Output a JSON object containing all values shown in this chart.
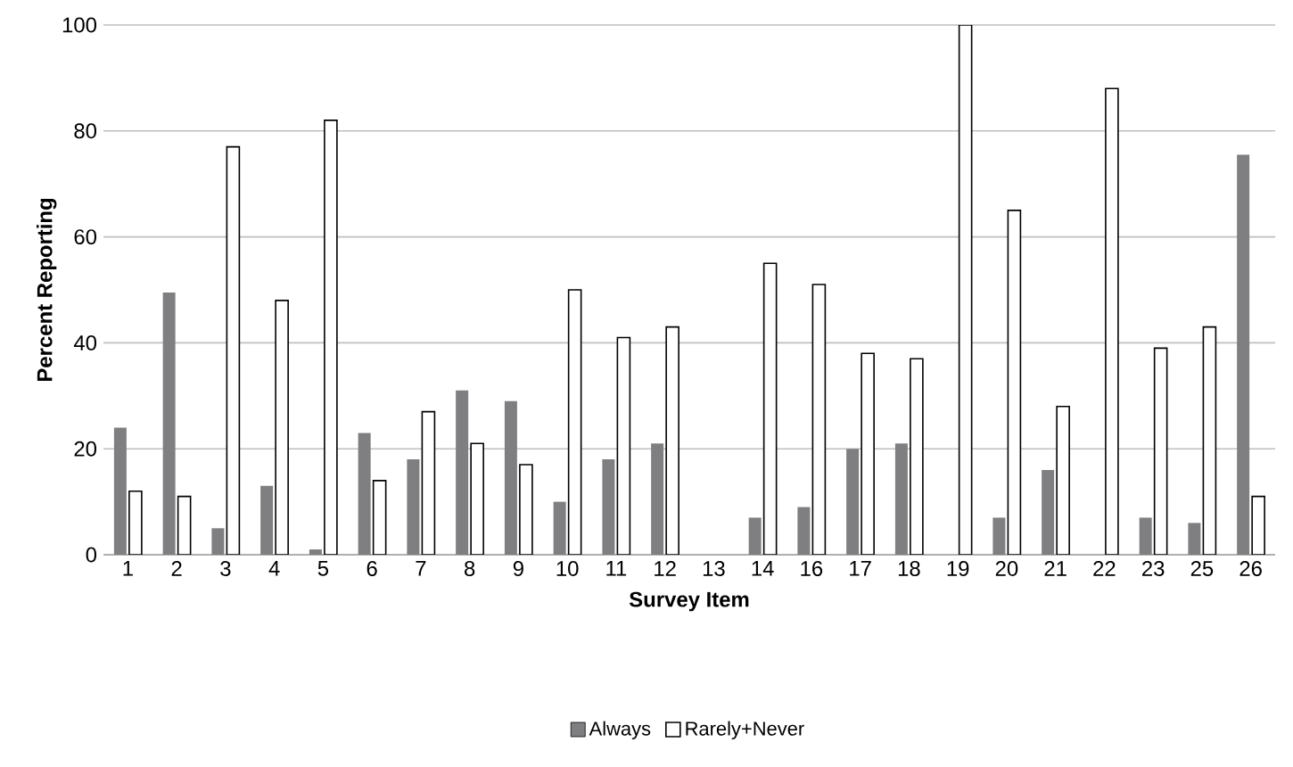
{
  "chart_data": {
    "type": "bar",
    "xlabel": "Survey Item",
    "ylabel": "Percent Reporting",
    "categories": [
      "1",
      "2",
      "3",
      "4",
      "5",
      "6",
      "7",
      "8",
      "9",
      "10",
      "11",
      "12",
      "13",
      "14",
      "16",
      "17",
      "18",
      "19",
      "20",
      "21",
      "22",
      "23",
      "25",
      "26"
    ],
    "series": [
      {
        "name": "Always",
        "color": "#7f7f82",
        "values": [
          24,
          49.5,
          5,
          13,
          1,
          23,
          18,
          31,
          29,
          10,
          18,
          21,
          null,
          7,
          9,
          20,
          21,
          0,
          7,
          16,
          0,
          7,
          6,
          75.5
        ]
      },
      {
        "name": "Rarely+Never",
        "color": "#ffffff",
        "values": [
          12,
          11,
          77,
          48,
          82,
          14,
          27,
          21,
          17,
          50,
          41,
          43,
          null,
          55,
          51,
          38,
          37,
          100,
          65,
          28,
          88,
          39,
          43,
          11
        ]
      }
    ],
    "ylim": [
      0,
      100
    ],
    "yticks": [
      0,
      20,
      40,
      60,
      80,
      100
    ],
    "grid": "y",
    "legend": "bottom"
  }
}
